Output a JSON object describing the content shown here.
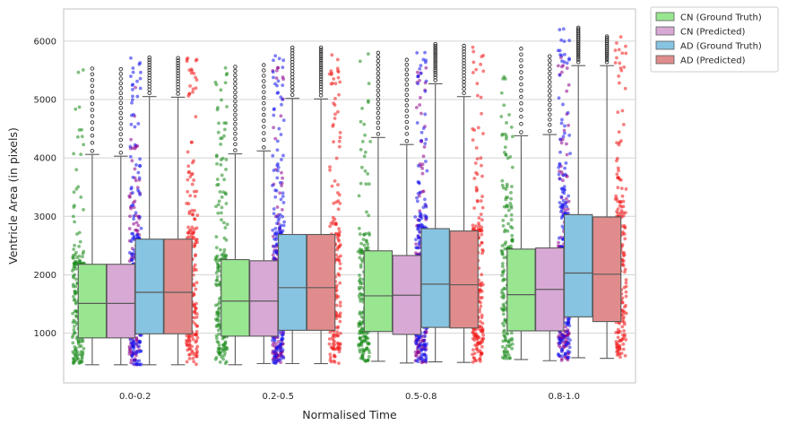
{
  "chart_data": {
    "type": "boxplot",
    "xlabel": "Normalised Time",
    "ylabel": "Ventricle Area (in pixels)",
    "categories": [
      "0.0-0.2",
      "0.2-0.5",
      "0.5-0.8",
      "0.8-1.0"
    ],
    "ylim": [
      150,
      6550
    ],
    "yticks": [
      1000,
      2000,
      3000,
      4000,
      5000,
      6000
    ],
    "grid": true,
    "legend_position": "outside-top-right",
    "series": [
      {
        "name": "CN (Ground Truth)",
        "box_color": "#98e690",
        "point_color": "#1a8a1a",
        "stats": [
          {
            "whisker_low": 460,
            "q1": 920,
            "median": 1510,
            "q3": 2180,
            "whisker_high": 4060,
            "max": 5530
          },
          {
            "whisker_low": 460,
            "q1": 950,
            "median": 1550,
            "q3": 2260,
            "whisker_high": 4070,
            "max": 5560
          },
          {
            "whisker_low": 520,
            "q1": 1030,
            "median": 1640,
            "q3": 2410,
            "whisker_high": 4350,
            "max": 5800
          },
          {
            "whisker_low": 550,
            "q1": 1040,
            "median": 1660,
            "q3": 2440,
            "whisker_high": 4380,
            "max": 5870
          }
        ]
      },
      {
        "name": "CN (Predicted)",
        "box_color": "#d9a9d6",
        "point_color": "#8b008b",
        "stats": [
          {
            "whisker_low": 460,
            "q1": 920,
            "median": 1510,
            "q3": 2180,
            "whisker_high": 4030,
            "max": 5520
          },
          {
            "whisker_low": 480,
            "q1": 950,
            "median": 1550,
            "q3": 2240,
            "whisker_high": 4120,
            "max": 5590
          },
          {
            "whisker_low": 490,
            "q1": 980,
            "median": 1650,
            "q3": 2330,
            "whisker_high": 4230,
            "max": 5680
          },
          {
            "whisker_low": 530,
            "q1": 1040,
            "median": 1750,
            "q3": 2460,
            "whisker_high": 4400,
            "max": 5740
          }
        ]
      },
      {
        "name": "AD (Ground Truth)",
        "box_color": "#87c4e2",
        "point_color": "#1515ee",
        "stats": [
          {
            "whisker_low": 460,
            "q1": 990,
            "median": 1700,
            "q3": 2610,
            "whisker_high": 5050,
            "max": 5720
          },
          {
            "whisker_low": 480,
            "q1": 1050,
            "median": 1780,
            "q3": 2690,
            "whisker_high": 5020,
            "max": 5890
          },
          {
            "whisker_low": 510,
            "q1": 1100,
            "median": 1840,
            "q3": 2790,
            "whisker_high": 5270,
            "max": 5950
          },
          {
            "whisker_low": 580,
            "q1": 1280,
            "median": 2030,
            "q3": 3030,
            "whisker_high": 5580,
            "max": 6230
          }
        ]
      },
      {
        "name": "AD (Predicted)",
        "box_color": "#e08c8c",
        "point_color": "#f01818",
        "stats": [
          {
            "whisker_low": 460,
            "q1": 990,
            "median": 1700,
            "q3": 2610,
            "whisker_high": 5040,
            "max": 5710
          },
          {
            "whisker_low": 480,
            "q1": 1050,
            "median": 1780,
            "q3": 2690,
            "whisker_high": 5010,
            "max": 5890
          },
          {
            "whisker_low": 500,
            "q1": 1090,
            "median": 1830,
            "q3": 2750,
            "whisker_high": 5050,
            "max": 5920
          },
          {
            "whisker_low": 570,
            "q1": 1200,
            "median": 2010,
            "q3": 2990,
            "whisker_high": 5580,
            "max": 6080
          }
        ]
      }
    ]
  }
}
